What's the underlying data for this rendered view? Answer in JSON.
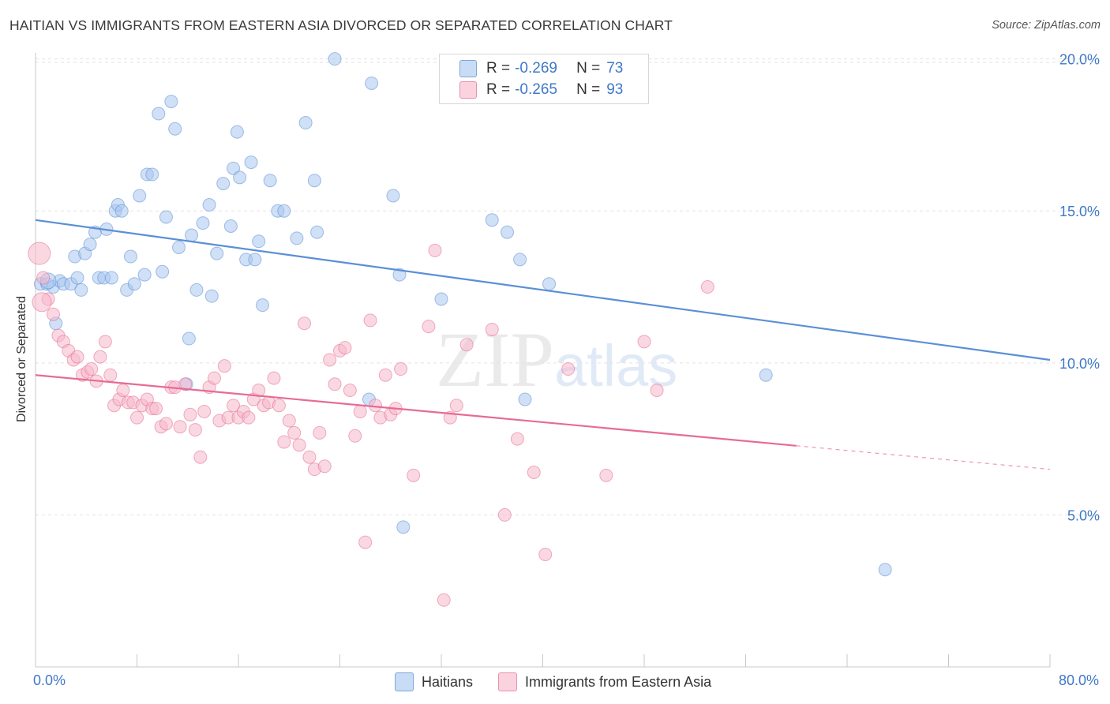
{
  "title": "HAITIAN VS IMMIGRANTS FROM EASTERN ASIA DIVORCED OR SEPARATED CORRELATION CHART",
  "source": "Source: ZipAtlas.com",
  "watermark": {
    "zip": "ZIP",
    "atlas": "atlas"
  },
  "legend": {
    "r_label": "R =",
    "n_label": "N =",
    "rows": [
      {
        "r": "-0.269",
        "n": "73",
        "color": "#a9c7ee"
      },
      {
        "r": "-0.265",
        "n": "93",
        "color": "#f6b8cb"
      }
    ]
  },
  "bottom_legend": [
    "Haitians",
    "Immigrants from Eastern Asia"
  ],
  "chart_data": {
    "type": "scatter",
    "title": "HAITIAN VS IMMIGRANTS FROM EASTERN ASIA DIVORCED OR SEPARATED CORRELATION CHART",
    "xlabel": "",
    "ylabel": "Divorced or Separated",
    "x_tick_labels": [
      "0.0%",
      "80.0%"
    ],
    "y_tick_labels": [
      "5.0%",
      "10.0%",
      "15.0%",
      "20.0%"
    ],
    "y_ticks": [
      5,
      10,
      15,
      20
    ],
    "xlim": [
      0,
      80
    ],
    "ylim": [
      0,
      20.9
    ],
    "grid": true,
    "legend_position": "top-center",
    "series": [
      {
        "name": "Haitians",
        "color": "#5b8fd6",
        "fill": "#a9c7ee",
        "trend": {
          "x": [
            0,
            80
          ],
          "y": [
            14.7,
            10.1
          ],
          "dash_from": null
        },
        "points": [
          [
            0.4,
            12.6
          ],
          [
            0.9,
            12.6
          ],
          [
            1.4,
            12.5
          ],
          [
            1.6,
            11.3
          ],
          [
            1.9,
            12.7
          ],
          [
            2.2,
            12.6
          ],
          [
            2.8,
            12.6
          ],
          [
            3.1,
            13.5
          ],
          [
            3.3,
            12.8
          ],
          [
            3.6,
            12.4
          ],
          [
            3.9,
            13.6
          ],
          [
            4.3,
            13.9
          ],
          [
            4.7,
            14.3
          ],
          [
            5.0,
            12.8
          ],
          [
            5.4,
            12.8
          ],
          [
            5.6,
            14.4
          ],
          [
            6.0,
            12.8
          ],
          [
            6.3,
            15.0
          ],
          [
            6.5,
            15.2
          ],
          [
            6.8,
            15.0
          ],
          [
            7.2,
            12.4
          ],
          [
            7.5,
            13.5
          ],
          [
            7.8,
            12.6
          ],
          [
            8.2,
            15.5
          ],
          [
            8.6,
            12.9
          ],
          [
            8.8,
            16.2
          ],
          [
            9.2,
            16.2
          ],
          [
            9.7,
            18.2
          ],
          [
            10.0,
            13.0
          ],
          [
            10.3,
            14.8
          ],
          [
            10.7,
            18.6
          ],
          [
            11.0,
            17.7
          ],
          [
            11.3,
            13.8
          ],
          [
            11.9,
            9.3
          ],
          [
            12.1,
            10.8
          ],
          [
            12.3,
            14.2
          ],
          [
            12.7,
            12.4
          ],
          [
            13.2,
            14.6
          ],
          [
            13.7,
            15.2
          ],
          [
            13.9,
            12.2
          ],
          [
            14.3,
            13.6
          ],
          [
            14.8,
            15.9
          ],
          [
            15.4,
            14.5
          ],
          [
            15.6,
            16.4
          ],
          [
            15.9,
            17.6
          ],
          [
            16.1,
            16.1
          ],
          [
            16.6,
            13.4
          ],
          [
            17.0,
            16.6
          ],
          [
            17.3,
            13.4
          ],
          [
            17.6,
            14.0
          ],
          [
            17.9,
            11.9
          ],
          [
            18.5,
            16.0
          ],
          [
            19.1,
            15.0
          ],
          [
            19.6,
            15.0
          ],
          [
            20.6,
            14.1
          ],
          [
            21.3,
            17.9
          ],
          [
            22.2,
            14.3
          ],
          [
            22.0,
            16.0
          ],
          [
            23.6,
            20.0
          ],
          [
            26.3,
            8.8
          ],
          [
            26.5,
            19.2
          ],
          [
            28.2,
            15.5
          ],
          [
            28.7,
            12.9
          ],
          [
            29.0,
            4.6
          ],
          [
            32.0,
            12.1
          ],
          [
            36.0,
            14.7
          ],
          [
            37.2,
            14.3
          ],
          [
            38.2,
            13.4
          ],
          [
            38.6,
            8.8
          ],
          [
            40.5,
            12.6
          ],
          [
            57.6,
            9.6
          ],
          [
            67.0,
            3.2
          ],
          [
            1.0,
            12.7
          ]
        ]
      },
      {
        "name": "Immigrants from Eastern Asia",
        "color": "#e66b95",
        "fill": "#f6b8cb",
        "trend": {
          "x": [
            0,
            80
          ],
          "y": [
            9.6,
            6.5
          ],
          "dash_from": 60
        },
        "points": [
          [
            0.3,
            13.6
          ],
          [
            0.6,
            12.8
          ],
          [
            1.0,
            12.1
          ],
          [
            1.4,
            11.6
          ],
          [
            1.8,
            10.9
          ],
          [
            2.2,
            10.7
          ],
          [
            2.6,
            10.4
          ],
          [
            3.0,
            10.1
          ],
          [
            3.3,
            10.2
          ],
          [
            3.7,
            9.6
          ],
          [
            4.1,
            9.7
          ],
          [
            4.4,
            9.8
          ],
          [
            4.8,
            9.4
          ],
          [
            5.1,
            10.2
          ],
          [
            5.5,
            10.7
          ],
          [
            5.9,
            9.6
          ],
          [
            6.2,
            8.6
          ],
          [
            6.6,
            8.8
          ],
          [
            6.9,
            9.1
          ],
          [
            7.3,
            8.7
          ],
          [
            7.7,
            8.7
          ],
          [
            8.0,
            8.2
          ],
          [
            8.4,
            8.6
          ],
          [
            8.8,
            8.8
          ],
          [
            9.2,
            8.5
          ],
          [
            9.5,
            8.5
          ],
          [
            9.9,
            7.9
          ],
          [
            10.3,
            8.0
          ],
          [
            10.7,
            9.2
          ],
          [
            11.0,
            9.2
          ],
          [
            11.4,
            7.9
          ],
          [
            11.8,
            9.3
          ],
          [
            12.2,
            8.3
          ],
          [
            12.6,
            7.8
          ],
          [
            13.0,
            6.9
          ],
          [
            13.3,
            8.4
          ],
          [
            13.7,
            9.2
          ],
          [
            14.1,
            9.5
          ],
          [
            14.5,
            8.1
          ],
          [
            14.9,
            9.9
          ],
          [
            15.2,
            8.2
          ],
          [
            15.6,
            8.6
          ],
          [
            16.0,
            8.2
          ],
          [
            16.4,
            8.4
          ],
          [
            16.8,
            8.2
          ],
          [
            17.2,
            8.8
          ],
          [
            17.6,
            9.1
          ],
          [
            18.0,
            8.6
          ],
          [
            18.4,
            8.7
          ],
          [
            18.8,
            9.5
          ],
          [
            19.2,
            8.6
          ],
          [
            19.6,
            7.4
          ],
          [
            20.0,
            8.1
          ],
          [
            20.4,
            7.7
          ],
          [
            20.8,
            7.3
          ],
          [
            21.2,
            11.3
          ],
          [
            21.6,
            6.9
          ],
          [
            22.0,
            6.5
          ],
          [
            22.4,
            7.7
          ],
          [
            22.8,
            6.6
          ],
          [
            23.2,
            10.1
          ],
          [
            23.6,
            9.3
          ],
          [
            24.0,
            10.4
          ],
          [
            24.4,
            10.5
          ],
          [
            24.8,
            9.1
          ],
          [
            25.2,
            7.6
          ],
          [
            25.6,
            8.4
          ],
          [
            26.0,
            4.1
          ],
          [
            26.4,
            11.4
          ],
          [
            26.8,
            8.6
          ],
          [
            27.2,
            8.2
          ],
          [
            27.6,
            9.6
          ],
          [
            28.0,
            8.3
          ],
          [
            28.4,
            8.5
          ],
          [
            28.8,
            9.8
          ],
          [
            29.8,
            6.3
          ],
          [
            31.0,
            11.2
          ],
          [
            31.5,
            13.7
          ],
          [
            32.2,
            2.2
          ],
          [
            32.7,
            8.2
          ],
          [
            33.2,
            8.6
          ],
          [
            34.0,
            10.6
          ],
          [
            36.0,
            11.1
          ],
          [
            37.0,
            5.0
          ],
          [
            38.0,
            7.5
          ],
          [
            39.3,
            6.4
          ],
          [
            40.2,
            3.7
          ],
          [
            42.0,
            9.8
          ],
          [
            45.0,
            6.3
          ],
          [
            48.0,
            10.7
          ],
          [
            49.0,
            9.1
          ],
          [
            53.0,
            12.5
          ],
          [
            0.5,
            12.0
          ]
        ]
      }
    ]
  }
}
